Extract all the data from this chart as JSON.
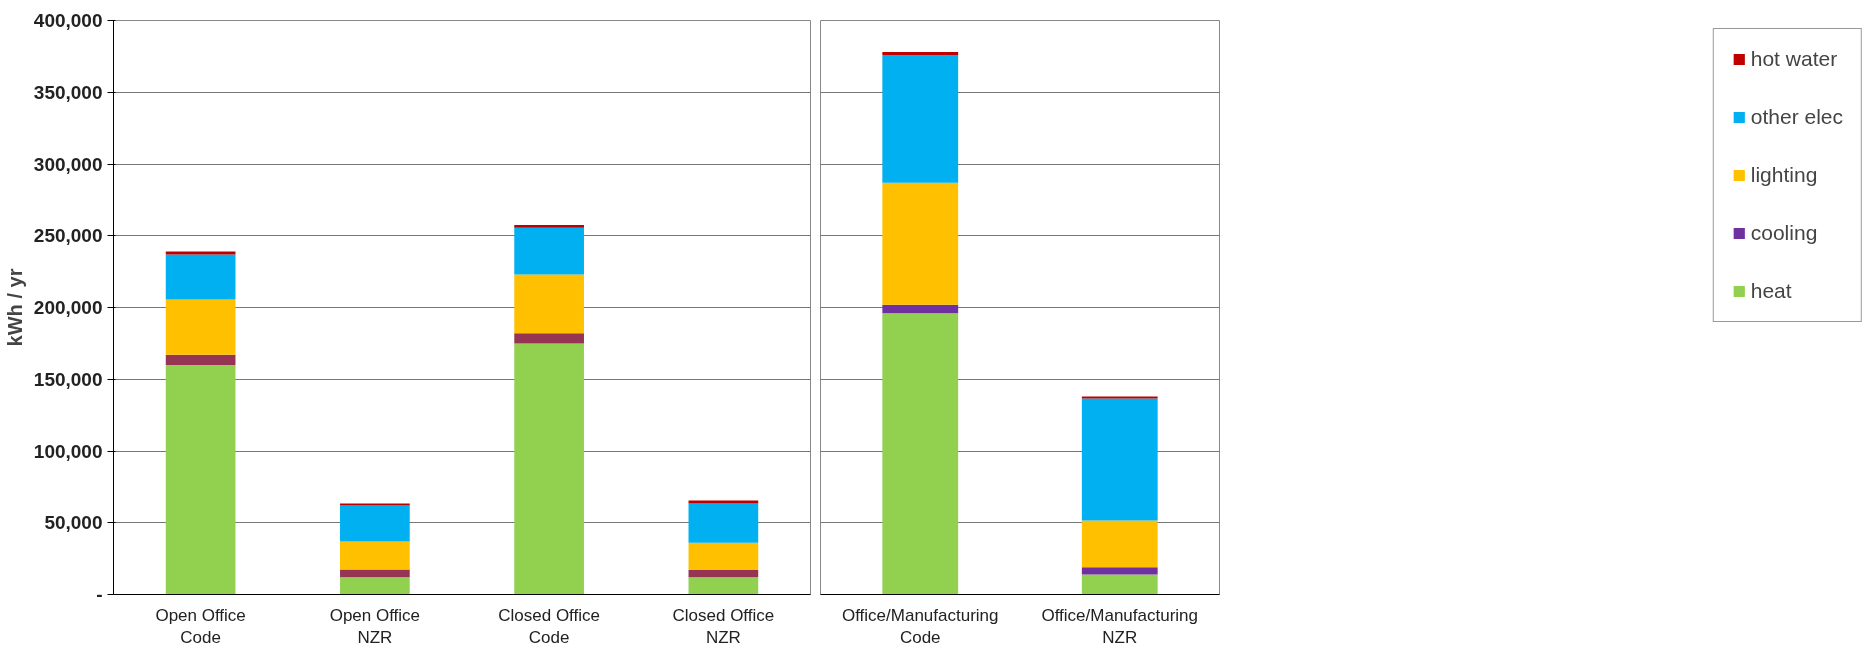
{
  "chart_data": [
    {
      "type": "bar",
      "stacked": true,
      "ylabel": "kWh / yr",
      "categories": [
        "Open Office\nCode",
        "Open Office\nNZR",
        "Closed Office\nCode",
        "Closed Office\nNZR"
      ],
      "ylim": [
        0,
        400000
      ],
      "yticks": [
        {
          "value": 0,
          "label": "-"
        },
        {
          "value": 50000,
          "label": "50,000"
        },
        {
          "value": 100000,
          "label": "100,000"
        },
        {
          "value": 150000,
          "label": "150,000"
        },
        {
          "value": 200000,
          "label": "200,000"
        },
        {
          "value": 250000,
          "label": "250,000"
        },
        {
          "value": 300000,
          "label": "300,000"
        },
        {
          "value": 350000,
          "label": "350,000"
        },
        {
          "value": 400000,
          "label": "400,000"
        }
      ],
      "grid": "y",
      "legend": false,
      "series": [
        {
          "color": "#92d050",
          "values": [
            160000,
            12000,
            175000,
            12000
          ]
        },
        {
          "color": "#953553",
          "values": [
            7000,
            5500,
            7000,
            5000
          ]
        },
        {
          "color": "#ffc000",
          "values": [
            38500,
            19500,
            41000,
            19000
          ]
        },
        {
          "color": "#00b0f0",
          "values": [
            31500,
            25000,
            32500,
            27500
          ]
        },
        {
          "color": "#c00000",
          "values": [
            2000,
            1500,
            2000,
            2000
          ]
        }
      ]
    },
    {
      "type": "bar",
      "stacked": true,
      "categories": [
        "Office/Manufacturing\nCode",
        "Office/Manufacturing\nNZR"
      ],
      "ylim": [
        0,
        400000
      ],
      "yticks": [
        0,
        50000,
        100000,
        150000,
        200000,
        250000,
        300000,
        350000,
        400000
      ],
      "tick_labels": "x",
      "grid": "y",
      "legend": "right",
      "series": [
        {
          "name": "heat",
          "color": "#92d050",
          "values": [
            196000,
            14000
          ]
        },
        {
          "name": "cooling",
          "color": "#7030a0",
          "values": [
            6000,
            5000
          ]
        },
        {
          "name": "lighting",
          "color": "#ffc000",
          "values": [
            85000,
            32500
          ]
        },
        {
          "name": "other elec",
          "color": "#00b0f0",
          "values": [
            89000,
            85000
          ]
        },
        {
          "name": "hot water",
          "color": "#c00000",
          "values": [
            2000,
            1500
          ]
        }
      ]
    }
  ]
}
